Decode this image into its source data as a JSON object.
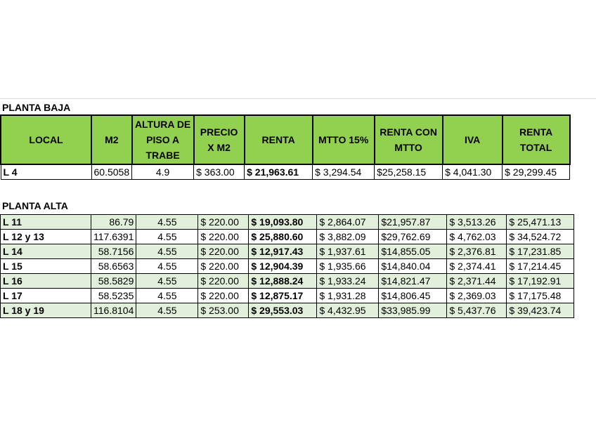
{
  "sections": {
    "planta_baja": "PLANTA BAJA",
    "planta_alta": "PLANTA ALTA"
  },
  "headers": [
    "LOCAL",
    "M2",
    "ALTURA DE PISO A TRABE",
    "PRECIO X M2",
    "RENTA",
    "MTTO  15%",
    "RENTA CON MTTO",
    "IVA",
    "RENTA TOTAL"
  ],
  "planta_baja_rows": [
    [
      "L 4",
      "60.5058",
      "4.9",
      "$ 363.00",
      "$ 21,963.61",
      "$ 3,294.54",
      "$25,258.15",
      "$ 4,041.30",
      "$  29,299.45"
    ]
  ],
  "planta_alta_rows": [
    [
      "L 11",
      "86.79",
      "4.55",
      "$ 220.00",
      "$ 19,093.80",
      "$ 2,864.07",
      "$21,957.87",
      "$ 3,513.26",
      "$  25,471.13"
    ],
    [
      "L 12 y 13",
      "117.6391",
      "4.55",
      "$ 220.00",
      "$ 25,880.60",
      "$ 3,882.09",
      "$29,762.69",
      "$ 4,762.03",
      "$  34,524.72"
    ],
    [
      "L 14",
      "58.7156",
      "4.55",
      "$ 220.00",
      "$ 12,917.43",
      "$ 1,937.61",
      "$14,855.05",
      "$ 2,376.81",
      "$  17,231.85"
    ],
    [
      "L 15",
      "58.6563",
      "4.55",
      "$ 220.00",
      "$ 12,904.39",
      "$ 1,935.66",
      "$14,840.04",
      "$ 2,374.41",
      "$  17,214.45"
    ],
    [
      "L 16",
      "58.5829",
      "4.55",
      "$ 220.00",
      "$ 12,888.24",
      "$ 1,933.24",
      "$14,821.47",
      "$ 2,371.44",
      "$  17,192.91"
    ],
    [
      "L 17",
      "58.5235",
      "4.55",
      "$ 220.00",
      "$ 12,875.17",
      "$ 1,931.28",
      "$14,806.45",
      "$ 2,369.03",
      "$  17,175.48"
    ],
    [
      "L 18 y 19",
      "116.8104",
      "4.55",
      "$ 253.00",
      "$ 29,553.03",
      "$ 4,432.95",
      "$33,985.99",
      "$ 5,437.76",
      "$  39,423.74"
    ]
  ],
  "colors": {
    "header_bg": "#92d050",
    "alt_row_bg": "#e2efda"
  }
}
